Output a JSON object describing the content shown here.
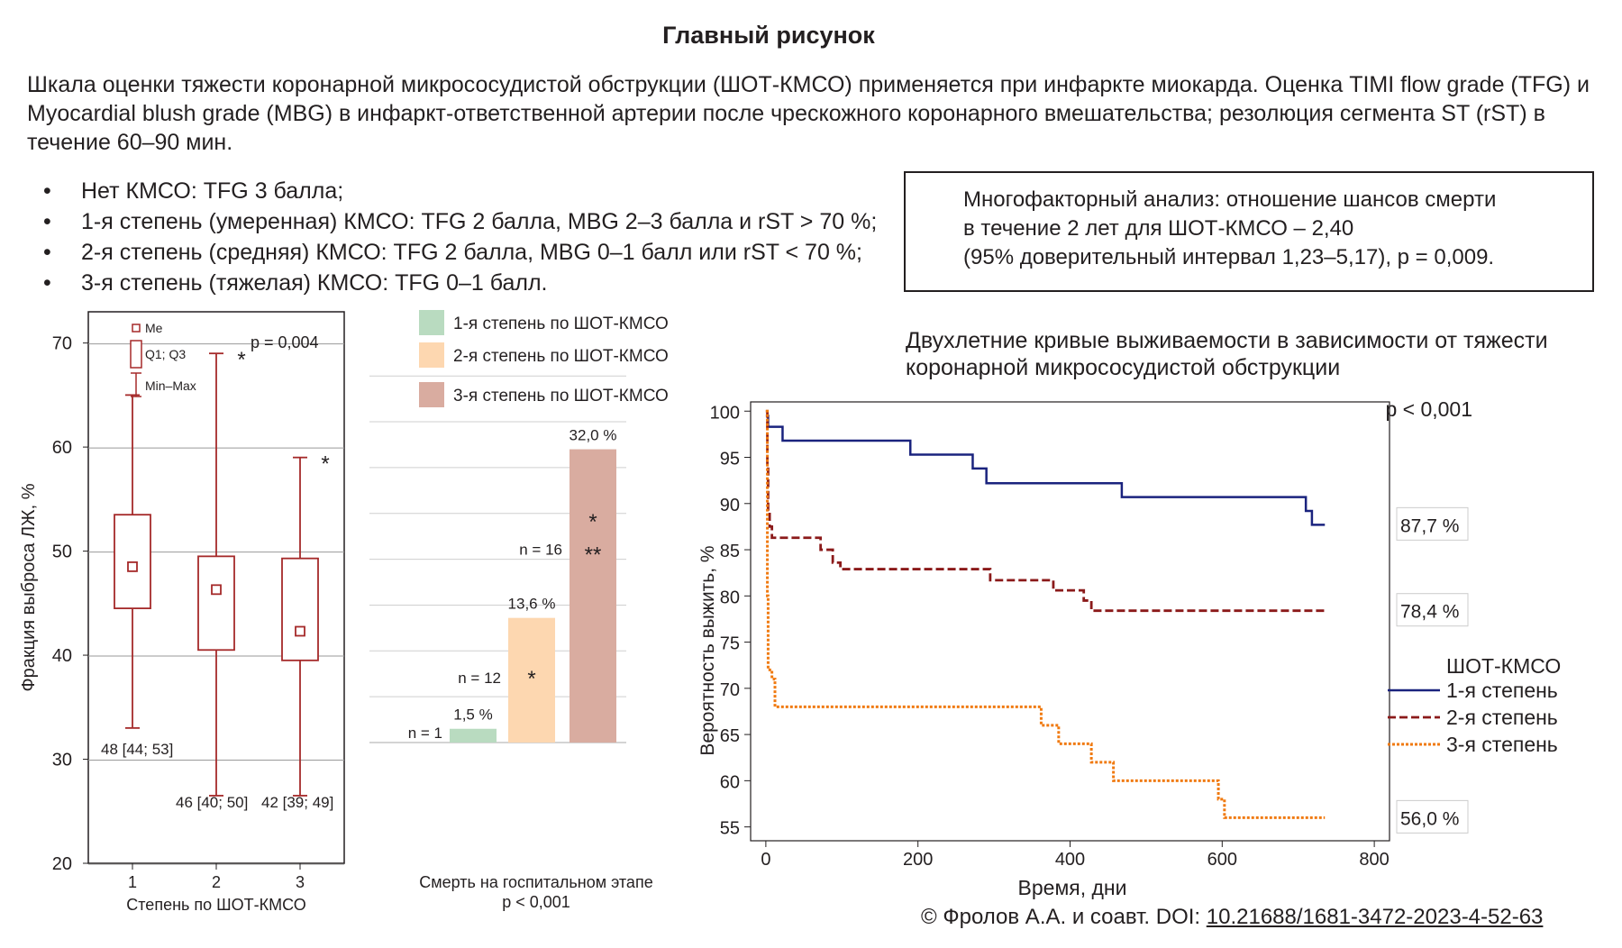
{
  "title": "Главный рисунок",
  "intro": "Шкала оценки тяжести коронарной микрососудистой обструкции (ШОТ-КМСО) применяется при инфаркте миокарда. Оценка TIMI flow grade (TFG) и Myocardial blush grade (MBG) в инфаркт-ответственной артерии после чрескожного коронарного вмешательства; резолюция сегмента ST (rST) в течение 60–90 мин.",
  "bullets": [
    "Нет КМСО: TFG 3 балла;",
    "1-я степень (умеренная) КМСО: TFG 2 балла, MBG 2–3 балла и rST > 70 %;",
    "2-я степень (средняя) КМСО: TFG 2 балла, MBG 0–1 балл или rST < 70 %;",
    "3-я степень (тяжелая) КМСО: TFG 0–1 балл."
  ],
  "multifactor_box": {
    "line1": "Многофакторный анализ: отношение шансов смерти",
    "line2": "в течение 2 лет для ШОТ-КМСО – 2,40",
    "line3": "(95% доверительный интервал 1,23–5,17), p = 0,009."
  },
  "survival_title": {
    "line1": "Двухлетние кривые выживаемости в зависимости от тяжести",
    "line2": "коронарной микрососудистой обструкции"
  },
  "copyright": {
    "prefix": "© Фролов А.А. и соавт. DOI: ",
    "doi": "10.21688/1681-3472-2023-4-52-63"
  },
  "colors": {
    "box_plot": "#a52a2a",
    "grade1_bar": "#b9dbc0",
    "grade2_bar": "#fdd7b0",
    "grade3_bar": "#d9aca0",
    "grade1_line": "#1a237e",
    "grade2_line": "#8b1a1a",
    "grade3_line": "#f07a10",
    "grid": "#999999"
  },
  "chart_data": [
    {
      "type": "box",
      "xlabel": "Степень по ШОТ-КМСО",
      "ylabel": "Фракция выброса ЛЖ, %",
      "ylim": [
        20,
        73
      ],
      "yticks": [
        20,
        30,
        40,
        50,
        60,
        70
      ],
      "p_value": "p = 0,004",
      "legend": [
        "Me",
        "Q1; Q3",
        "Min–Max"
      ],
      "groups": [
        {
          "x": "1",
          "min": 33,
          "q1": 44.5,
          "median": 48.5,
          "q3": 53.5,
          "max": 65,
          "outlier": null,
          "label": "48 [44; 53]"
        },
        {
          "x": "2",
          "min": 26.5,
          "q1": 40.5,
          "median": 46.3,
          "q3": 49.5,
          "max": 69,
          "outlier": 69,
          "label": "46 [40; 50]"
        },
        {
          "x": "3",
          "min": 26.5,
          "q1": 39.5,
          "median": 42.3,
          "q3": 49.3,
          "max": 59,
          "outlier": 59,
          "label": "42 [39; 49]"
        }
      ]
    },
    {
      "type": "bar",
      "xlabel": "Смерть на госпитальном этапе",
      "p_value": "p < 0,001",
      "ylim": [
        0,
        47
      ],
      "yticks": [
        0,
        5,
        10,
        15,
        20,
        25,
        30,
        35,
        40,
        45
      ],
      "legend": [
        "1-я степень по ШОТ-КМСО",
        "2-я степень по ШОТ-КМСО",
        "3-я степень по ШОТ-КМСО"
      ],
      "bars": [
        {
          "value": 1.5,
          "label": "1,5 %",
          "n": "n = 1",
          "marker": ""
        },
        {
          "value": 13.6,
          "label": "13,6 %",
          "n": "n = 12",
          "marker": "*"
        },
        {
          "value": 32.0,
          "label": "32,0 %",
          "n": "n = 16",
          "marker": "*",
          "marker2": "**"
        }
      ]
    },
    {
      "type": "line",
      "xlabel": "Время, дни",
      "ylabel": "Вероятность выжить, %",
      "xlim": [
        -20,
        820
      ],
      "ylim": [
        53.5,
        101
      ],
      "xticks": [
        0,
        200,
        400,
        600,
        800
      ],
      "yticks": [
        55,
        60,
        65,
        70,
        75,
        80,
        85,
        90,
        95,
        100
      ],
      "p_value": "p < 0,001",
      "legend_title": "ШОТ-КМСО",
      "series": [
        {
          "name": "1-я степень",
          "end_label": "87,7 %",
          "steps": [
            [
              0,
              99.5
            ],
            [
              3,
              98.3
            ],
            [
              22,
              96.8
            ],
            [
              190,
              95.3
            ],
            [
              272,
              93.8
            ],
            [
              290,
              92.2
            ],
            [
              468,
              90.7
            ],
            [
              710,
              89.2
            ],
            [
              718,
              87.7
            ],
            [
              735,
              87.7
            ]
          ]
        },
        {
          "name": "2-я степень",
          "end_label": "78,4 %",
          "steps": [
            [
              0,
              100
            ],
            [
              2,
              94
            ],
            [
              3,
              89
            ],
            [
              5,
              87.5
            ],
            [
              8,
              86.3
            ],
            [
              72,
              85
            ],
            [
              88,
              83.6
            ],
            [
              98,
              82.9
            ],
            [
              295,
              81.7
            ],
            [
              378,
              80.6
            ],
            [
              418,
              79.5
            ],
            [
              428,
              78.4
            ],
            [
              735,
              78.4
            ]
          ]
        },
        {
          "name": "3-я степень",
          "end_label": "56,0 %",
          "steps": [
            [
              0,
              100
            ],
            [
              2,
              80
            ],
            [
              3,
              72
            ],
            [
              8,
              71
            ],
            [
              12,
              68
            ],
            [
              362,
              66
            ],
            [
              385,
              64
            ],
            [
              428,
              62
            ],
            [
              457,
              60
            ],
            [
              595,
              58
            ],
            [
              603,
              56
            ],
            [
              735,
              56
            ]
          ]
        }
      ]
    }
  ]
}
